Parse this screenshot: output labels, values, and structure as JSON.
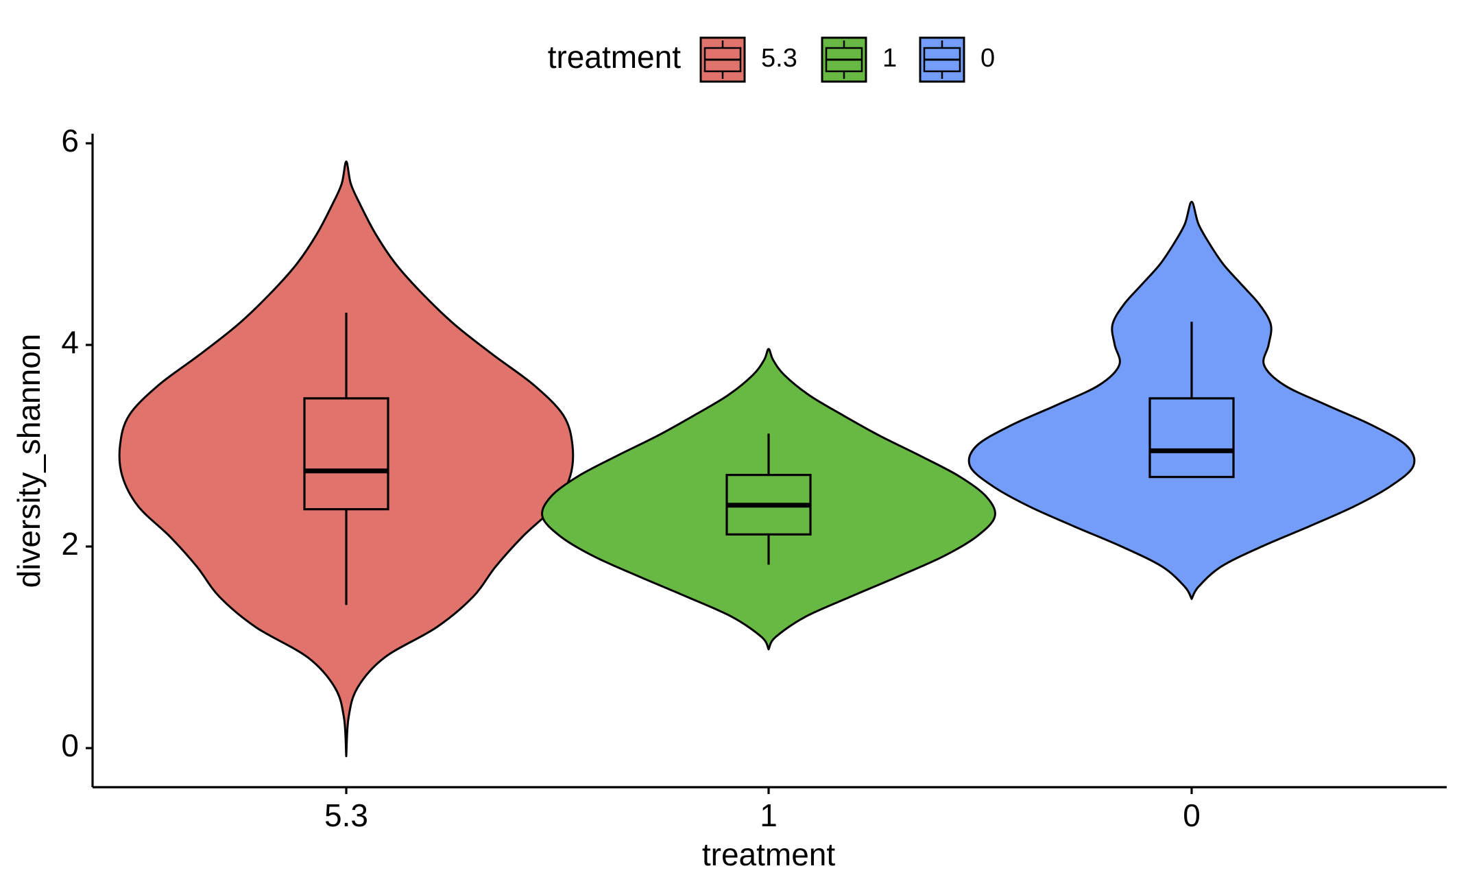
{
  "chart_data": {
    "type": "violin",
    "xlabel": "treatment",
    "ylabel": "diversity_shannon",
    "ylim": [
      -0.35,
      6.15
    ],
    "yticks": [
      0,
      2,
      4,
      6
    ],
    "grid": false,
    "legend": {
      "title": "treatment",
      "position": "top",
      "entries": [
        "5.3",
        "1",
        "0"
      ]
    },
    "categories": [
      "5.3",
      "1",
      "0"
    ],
    "series": [
      {
        "name": "5.3",
        "color": "#E0736C",
        "violin": {
          "min": -0.08,
          "max": 5.82,
          "density": [
            [
              -0.08,
              0.0
            ],
            [
              0.3,
              0.01
            ],
            [
              0.6,
              0.05
            ],
            [
              0.9,
              0.17
            ],
            [
              1.2,
              0.4
            ],
            [
              1.5,
              0.56
            ],
            [
              1.8,
              0.66
            ],
            [
              2.1,
              0.78
            ],
            [
              2.4,
              0.92
            ],
            [
              2.7,
              0.99
            ],
            [
              3.0,
              1.0
            ],
            [
              3.3,
              0.96
            ],
            [
              3.6,
              0.83
            ],
            [
              3.9,
              0.65
            ],
            [
              4.2,
              0.48
            ],
            [
              4.5,
              0.34
            ],
            [
              4.8,
              0.22
            ],
            [
              5.1,
              0.13
            ],
            [
              5.4,
              0.06
            ],
            [
              5.6,
              0.02
            ],
            [
              5.82,
              0.0
            ]
          ]
        },
        "box": {
          "whisker_low": 1.42,
          "q1": 2.37,
          "median": 2.75,
          "q3": 3.47,
          "whisker_high": 4.32
        }
      },
      {
        "name": "1",
        "color": "#68B844",
        "violin": {
          "min": 0.98,
          "max": 3.96,
          "density": [
            [
              0.98,
              0.0
            ],
            [
              1.1,
              0.03
            ],
            [
              1.3,
              0.16
            ],
            [
              1.5,
              0.36
            ],
            [
              1.7,
              0.57
            ],
            [
              1.9,
              0.77
            ],
            [
              2.1,
              0.92
            ],
            [
              2.3,
              1.0
            ],
            [
              2.5,
              0.96
            ],
            [
              2.7,
              0.84
            ],
            [
              2.9,
              0.67
            ],
            [
              3.1,
              0.49
            ],
            [
              3.3,
              0.33
            ],
            [
              3.5,
              0.18
            ],
            [
              3.7,
              0.07
            ],
            [
              3.85,
              0.02
            ],
            [
              3.96,
              0.0
            ]
          ]
        },
        "box": {
          "whisker_low": 1.82,
          "q1": 2.12,
          "median": 2.41,
          "q3": 2.71,
          "whisker_high": 3.12
        }
      },
      {
        "name": "0",
        "color": "#739DF8",
        "violin": {
          "min": 1.48,
          "max": 5.42,
          "density": [
            [
              1.48,
              0.0
            ],
            [
              1.6,
              0.03
            ],
            [
              1.8,
              0.13
            ],
            [
              2.0,
              0.31
            ],
            [
              2.2,
              0.52
            ],
            [
              2.4,
              0.72
            ],
            [
              2.6,
              0.88
            ],
            [
              2.8,
              0.98
            ],
            [
              3.0,
              0.95
            ],
            [
              3.2,
              0.8
            ],
            [
              3.4,
              0.6
            ],
            [
              3.6,
              0.41
            ],
            [
              3.8,
              0.32
            ],
            [
              4.0,
              0.34
            ],
            [
              4.2,
              0.35
            ],
            [
              4.4,
              0.3
            ],
            [
              4.6,
              0.22
            ],
            [
              4.8,
              0.14
            ],
            [
              5.0,
              0.08
            ],
            [
              5.2,
              0.03
            ],
            [
              5.42,
              0.0
            ]
          ]
        },
        "box": {
          "whisker_low": 2.69,
          "q1": 2.69,
          "median": 2.95,
          "q3": 3.47,
          "whisker_high": 4.23
        }
      }
    ]
  }
}
